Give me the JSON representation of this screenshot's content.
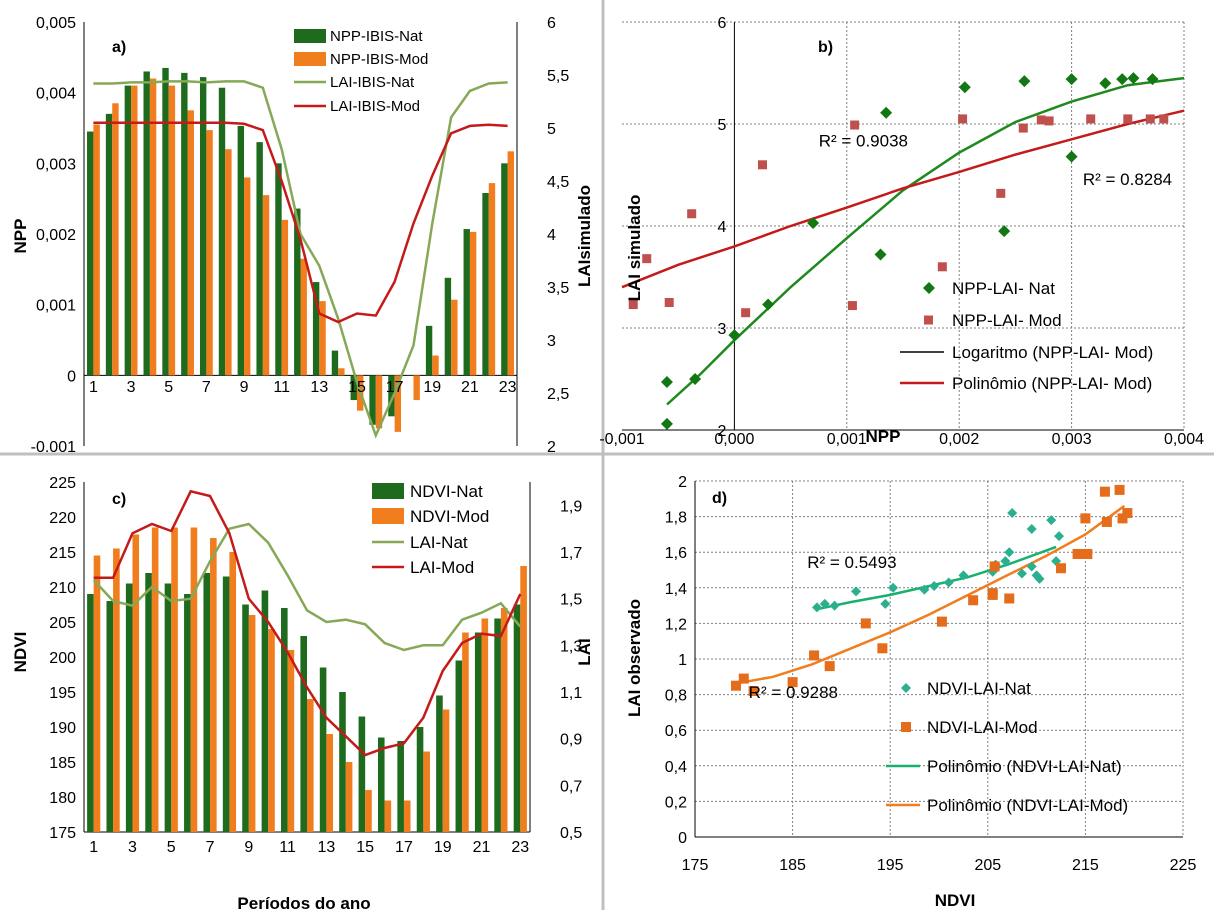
{
  "colors": {
    "nat_bar": "#1e6b1e",
    "mod_bar": "#f07d1e",
    "nat_line": "#86a857",
    "mod_line": "#c41a1a",
    "scatter_nat": "#137813",
    "scatter_mod": "#c0504d",
    "trend_nat_b": "#1e8a1e",
    "trend_mod_b": "#c41a1a",
    "scatter_nat_d": "#2bb08f",
    "scatter_mod_d": "#e46c1a",
    "trend_nat_d": "#18b06e",
    "trend_mod_d": "#f07d1e",
    "divider": "#bfbfbf",
    "grid": "#808080"
  },
  "chart_data": [
    {
      "id": "a",
      "type": "bar",
      "panel_label": "a)",
      "ylabel": "NPP",
      "y2label": "LAIsimulado",
      "ylim": [
        -0.001,
        0.005
      ],
      "y2lim": [
        2,
        6
      ],
      "yticks": [
        "-0.001",
        "0",
        "0,001",
        "0,002",
        "0,003",
        "0,004",
        "0,005"
      ],
      "y2ticks": [
        "2",
        "2,5",
        "3",
        "3,5",
        "4",
        "4,5",
        "5",
        "5,5",
        "6"
      ],
      "xticks": [
        "1",
        "3",
        "5",
        "7",
        "9",
        "11",
        "13",
        "15",
        "17",
        "19",
        "21",
        "23"
      ],
      "categories": [
        1,
        2,
        3,
        4,
        5,
        6,
        7,
        8,
        9,
        10,
        11,
        12,
        13,
        14,
        15,
        16,
        17,
        18,
        19,
        20,
        21,
        22,
        23
      ],
      "series": [
        {
          "name": "NPP-IBIS-Nat",
          "kind": "bar",
          "axis": "left",
          "values": [
            0.00345,
            0.0037,
            0.0041,
            0.0043,
            0.00435,
            0.00428,
            0.00422,
            0.00407,
            0.00353,
            0.0033,
            0.003,
            0.00236,
            0.00132,
            0.00035,
            -0.00035,
            -0.0007,
            -0.00058,
            0.0,
            0.0007,
            0.00138,
            0.00207,
            0.00258,
            0.003
          ]
        },
        {
          "name": "NPP-IBIS-Mod",
          "kind": "bar",
          "axis": "left",
          "values": [
            0.00355,
            0.00385,
            0.0041,
            0.0042,
            0.0041,
            0.00375,
            0.00347,
            0.0032,
            0.0028,
            0.00255,
            0.0022,
            0.00165,
            0.00105,
            0.0001,
            -0.0005,
            -0.00075,
            -0.0008,
            -0.00035,
            0.00028,
            0.00107,
            0.00203,
            0.00272,
            0.00317
          ]
        },
        {
          "name": "LAI-IBIS-Nat",
          "kind": "line",
          "axis": "right",
          "values": [
            5.42,
            5.42,
            5.43,
            5.43,
            5.44,
            5.44,
            5.43,
            5.44,
            5.44,
            5.38,
            4.8,
            4.0,
            3.7,
            3.2,
            2.6,
            2.1,
            2.5,
            2.95,
            4.1,
            5.1,
            5.35,
            5.42,
            5.43
          ]
        },
        {
          "name": "LAI-IBIS-Mod",
          "kind": "line",
          "axis": "right",
          "values": [
            5.05,
            5.05,
            5.05,
            5.05,
            5.05,
            5.05,
            5.05,
            5.05,
            5.04,
            4.98,
            4.5,
            3.95,
            3.25,
            3.17,
            3.25,
            3.23,
            3.55,
            4.1,
            4.55,
            4.95,
            5.02,
            5.03,
            5.02
          ]
        }
      ]
    },
    {
      "id": "b",
      "type": "scatter",
      "panel_label": "b)",
      "xlabel": "NPP",
      "ylabel": "LAI simulado",
      "xlim": [
        -0.001,
        0.004
      ],
      "ylim": [
        2,
        6
      ],
      "xticks": [
        "-0,001",
        "0,000",
        "0,001",
        "0,002",
        "0,003",
        "0,004"
      ],
      "yticks": [
        "2",
        "3",
        "4",
        "5",
        "6"
      ],
      "series": [
        {
          "name": "NPP-LAI- Nat",
          "kind": "points",
          "points": [
            [
              -0.0006,
              2.06
            ],
            [
              -0.0006,
              2.47
            ],
            [
              -0.00035,
              2.5
            ],
            [
              0.0,
              2.93
            ],
            [
              0.0003,
              3.23
            ],
            [
              0.0007,
              4.03
            ],
            [
              0.0013,
              3.72
            ],
            [
              0.00135,
              5.11
            ],
            [
              0.00205,
              5.36
            ],
            [
              0.0024,
              3.95
            ],
            [
              0.00258,
              5.42
            ],
            [
              0.003,
              4.68
            ],
            [
              0.003,
              5.44
            ],
            [
              0.0033,
              5.4
            ],
            [
              0.00345,
              5.44
            ],
            [
              0.00355,
              5.45
            ],
            [
              0.00372,
              5.44
            ]
          ]
        },
        {
          "name": "NPP-LAI- Mod",
          "kind": "points",
          "points": [
            [
              -0.0009,
              3.23
            ],
            [
              -0.00078,
              3.68
            ],
            [
              -0.00058,
              3.25
            ],
            [
              -0.00038,
              4.12
            ],
            [
              0.0001,
              3.15
            ],
            [
              0.00025,
              4.6
            ],
            [
              0.00105,
              3.22
            ],
            [
              0.00107,
              4.99
            ],
            [
              0.00185,
              3.6
            ],
            [
              0.00203,
              5.05
            ],
            [
              0.00237,
              4.32
            ],
            [
              0.00257,
              4.96
            ],
            [
              0.00273,
              5.04
            ],
            [
              0.0028,
              5.03
            ],
            [
              0.00317,
              5.05
            ],
            [
              0.0035,
              5.05
            ],
            [
              0.0037,
              5.05
            ],
            [
              0.00382,
              5.05
            ]
          ]
        },
        {
          "name": "Logaritmo (NPP-LAI- Mod)",
          "kind": "trend",
          "points": [
            [
              -0.0006,
              2.25
            ],
            [
              -0.0003,
              2.55
            ],
            [
              0.0,
              2.88
            ],
            [
              0.0005,
              3.4
            ],
            [
              0.001,
              3.88
            ],
            [
              0.0015,
              4.35
            ],
            [
              0.002,
              4.72
            ],
            [
              0.0025,
              5.02
            ],
            [
              0.003,
              5.22
            ],
            [
              0.0035,
              5.38
            ],
            [
              0.004,
              5.45
            ]
          ]
        },
        {
          "name": "Polinômio (NPP-LAI- Mod)",
          "kind": "trend",
          "points": [
            [
              -0.001,
              3.4
            ],
            [
              -0.0005,
              3.62
            ],
            [
              0.0,
              3.8
            ],
            [
              0.0005,
              4.0
            ],
            [
              0.001,
              4.18
            ],
            [
              0.0015,
              4.37
            ],
            [
              0.002,
              4.53
            ],
            [
              0.0025,
              4.7
            ],
            [
              0.003,
              4.85
            ],
            [
              0.0035,
              5.0
            ],
            [
              0.004,
              5.13
            ]
          ]
        }
      ],
      "annotations": [
        {
          "text": "R² = 0.9038",
          "x": 0.00075,
          "y": 4.78
        },
        {
          "text": "R² = 0.8284",
          "x": 0.0031,
          "y": 4.4
        }
      ]
    },
    {
      "id": "c",
      "type": "bar",
      "panel_label": "c)",
      "xlabel": "Períodos do ano",
      "ylabel": "NDVI",
      "y2label": "LAI",
      "ylim": [
        175,
        225
      ],
      "y2lim": [
        0.5,
        2.0
      ],
      "yticks": [
        "175",
        "180",
        "185",
        "190",
        "195",
        "200",
        "205",
        "210",
        "215",
        "220",
        "225"
      ],
      "y2ticks": [
        "0,5",
        "0,7",
        "0,9",
        "1,1",
        "1,3",
        "1,5",
        "1,7",
        "1,9"
      ],
      "xticks": [
        "1",
        "3",
        "5",
        "7",
        "9",
        "11",
        "13",
        "15",
        "17",
        "19",
        "21",
        "23"
      ],
      "categories": [
        1,
        2,
        3,
        4,
        5,
        6,
        7,
        8,
        9,
        10,
        11,
        12,
        13,
        14,
        15,
        16,
        17,
        18,
        19,
        20,
        21,
        22,
        23
      ],
      "series": [
        {
          "name": "NDVI-Nat",
          "kind": "bar",
          "axis": "left",
          "values": [
            209,
            208,
            210.5,
            212,
            210.5,
            209,
            212,
            211.5,
            207.5,
            209.5,
            207,
            203,
            198.5,
            195,
            191.5,
            188.5,
            188,
            190,
            194.5,
            199.5,
            203.5,
            205.5,
            207.5
          ]
        },
        {
          "name": "NDVI-Mod",
          "kind": "bar",
          "axis": "left",
          "values": [
            214.5,
            215.5,
            217.5,
            218.5,
            218.5,
            218.5,
            217,
            215,
            206,
            204,
            201,
            194,
            189,
            185,
            181,
            179.5,
            179.5,
            186.5,
            192.5,
            203.5,
            205.5,
            207,
            213
          ]
        },
        {
          "name": "LAI-Nat",
          "kind": "line",
          "axis": "right",
          "values": [
            1.58,
            1.49,
            1.47,
            1.55,
            1.49,
            1.5,
            1.66,
            1.8,
            1.82,
            1.74,
            1.6,
            1.45,
            1.4,
            1.41,
            1.39,
            1.31,
            1.28,
            1.3,
            1.3,
            1.41,
            1.44,
            1.48,
            1.38
          ]
        },
        {
          "name": "LAI-Mod",
          "kind": "line",
          "axis": "right",
          "values": [
            1.59,
            1.59,
            1.78,
            1.82,
            1.79,
            1.96,
            1.94,
            1.78,
            1.5,
            1.4,
            1.27,
            1.12,
            0.99,
            0.91,
            0.83,
            0.86,
            0.88,
            0.99,
            1.19,
            1.31,
            1.35,
            1.34,
            1.52
          ]
        }
      ]
    },
    {
      "id": "d",
      "type": "scatter",
      "panel_label": "d)",
      "xlabel": "NDVI",
      "ylabel": "LAI observado",
      "xlim": [
        175,
        225
      ],
      "ylim": [
        0,
        2
      ],
      "xticks": [
        "175",
        "185",
        "195",
        "205",
        "215",
        "225"
      ],
      "yticks": [
        "0",
        "0,2",
        "0,4",
        "0,6",
        "0,8",
        "1",
        "1,2",
        "1,4",
        "1,6",
        "1,8",
        "2"
      ],
      "series": [
        {
          "name": "NDVI-LAI-Nat",
          "kind": "points",
          "points": [
            [
              187.5,
              1.29
            ],
            [
              188.3,
              1.31
            ],
            [
              189.3,
              1.3
            ],
            [
              191.5,
              1.38
            ],
            [
              194.5,
              1.31
            ],
            [
              195.3,
              1.4
            ],
            [
              198.5,
              1.39
            ],
            [
              199.5,
              1.41
            ],
            [
              201,
              1.43
            ],
            [
              202.5,
              1.47
            ],
            [
              205.5,
              1.49
            ],
            [
              205.8,
              1.53
            ],
            [
              206.8,
              1.55
            ],
            [
              207.2,
              1.6
            ],
            [
              207.5,
              1.82
            ],
            [
              208.5,
              1.48
            ],
            [
              209.5,
              1.52
            ],
            [
              210,
              1.47
            ],
            [
              210.3,
              1.45
            ],
            [
              209.5,
              1.73
            ],
            [
              211.5,
              1.78
            ],
            [
              212.3,
              1.69
            ],
            [
              212,
              1.55
            ]
          ]
        },
        {
          "name": "NDVI-LAI-Mod",
          "kind": "points",
          "points": [
            [
              179.2,
              0.85
            ],
            [
              180,
              0.89
            ],
            [
              181,
              0.82
            ],
            [
              185,
              0.87
            ],
            [
              187.2,
              1.02
            ],
            [
              188.8,
              0.96
            ],
            [
              192.5,
              1.2
            ],
            [
              194.2,
              1.06
            ],
            [
              200.3,
              1.21
            ],
            [
              203.5,
              1.33
            ],
            [
              205.5,
              1.36
            ],
            [
              205.7,
              1.52
            ],
            [
              207.2,
              1.34
            ],
            [
              212.5,
              1.51
            ],
            [
              214.2,
              1.59
            ],
            [
              215,
              1.79
            ],
            [
              215.2,
              1.59
            ],
            [
              217,
              1.94
            ],
            [
              218.5,
              1.95
            ],
            [
              218.8,
              1.79
            ],
            [
              217.2,
              1.77
            ],
            [
              219.3,
              1.82
            ],
            [
              205.5,
              1.37
            ]
          ]
        },
        {
          "name": "Polinômio (NDVI-LAI-Nat)",
          "kind": "trend",
          "points": [
            [
              187.5,
              1.28
            ],
            [
              191,
              1.32
            ],
            [
              195,
              1.36
            ],
            [
              199,
              1.41
            ],
            [
              203,
              1.46
            ],
            [
              207,
              1.53
            ],
            [
              212,
              1.63
            ]
          ]
        },
        {
          "name": "Polinômio (NDVI-LAI-Mod)",
          "kind": "trend",
          "points": [
            [
              179,
              0.86
            ],
            [
              183,
              0.9
            ],
            [
              187,
              0.97
            ],
            [
              191,
              1.06
            ],
            [
              195,
              1.15
            ],
            [
              199,
              1.25
            ],
            [
              203,
              1.36
            ],
            [
              207,
              1.47
            ],
            [
              211,
              1.58
            ],
            [
              215,
              1.7
            ],
            [
              219,
              1.86
            ]
          ]
        }
      ],
      "annotations": [
        {
          "text": "R² = 0.5493",
          "x": 186.5,
          "y": 1.51
        },
        {
          "text": "R² = 0.9288",
          "x": 180.5,
          "y": 0.78
        }
      ]
    }
  ]
}
